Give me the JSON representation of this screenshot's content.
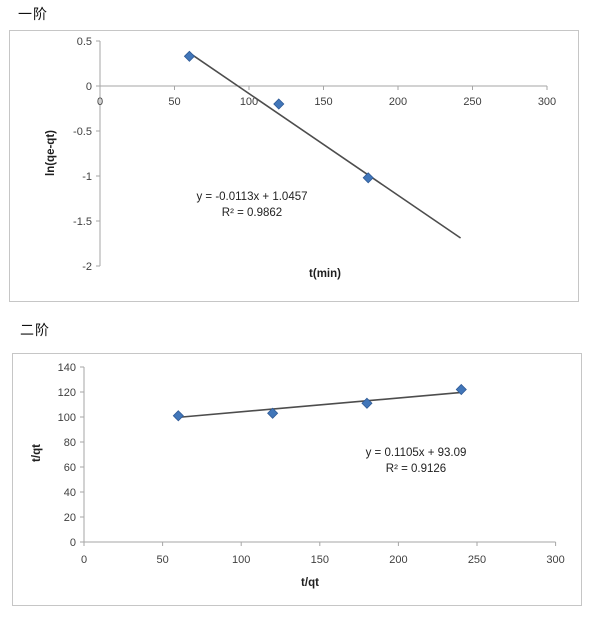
{
  "colors": {
    "marker_fill": "#4176b9",
    "marker_stroke": "#2f5a96",
    "trendline": "#4d4d4d",
    "axis": "#a6a6a6",
    "tick_text": "#3f3f3f",
    "text": "#1f1f1f",
    "panel_border": "#c6c6c6"
  },
  "chart_data": [
    {
      "type": "scatter",
      "title": "一阶",
      "xlabel": "t(min)",
      "ylabel": "ln(qe-qt)",
      "x": [
        60,
        120,
        180
      ],
      "y": [
        0.33,
        -0.2,
        -1.02
      ],
      "x_ticks": [
        0,
        50,
        100,
        150,
        200,
        250,
        300
      ],
      "y_ticks": [
        0.5,
        0,
        -0.5,
        -1,
        -1.5,
        -2
      ],
      "xlim": [
        0,
        300
      ],
      "ylim": [
        -2,
        0.5
      ],
      "grid": false,
      "legend": "none",
      "trendline": {
        "slope": -0.0113,
        "intercept": 1.0457,
        "x_start": 62,
        "x_end": 242
      },
      "equation": "y = -0.0113x + 1.0457",
      "r_squared": "R² = 0.9862"
    },
    {
      "type": "scatter",
      "title": "二阶",
      "xlabel": "t/qt",
      "ylabel": "t/qt",
      "x": [
        60,
        120,
        180,
        240
      ],
      "y": [
        101,
        103,
        111,
        122
      ],
      "x_ticks": [
        0,
        50,
        100,
        150,
        200,
        250,
        300
      ],
      "y_ticks": [
        0,
        20,
        40,
        60,
        80,
        100,
        120,
        140
      ],
      "xlim": [
        0,
        300
      ],
      "ylim": [
        0,
        140
      ],
      "grid": false,
      "legend": "none",
      "trendline": {
        "slope": 0.1105,
        "intercept": 93.09,
        "x_start": 58,
        "x_end": 241
      },
      "equation": "y = 0.1105x + 93.09",
      "r_squared": "R² = 0.9126"
    }
  ]
}
